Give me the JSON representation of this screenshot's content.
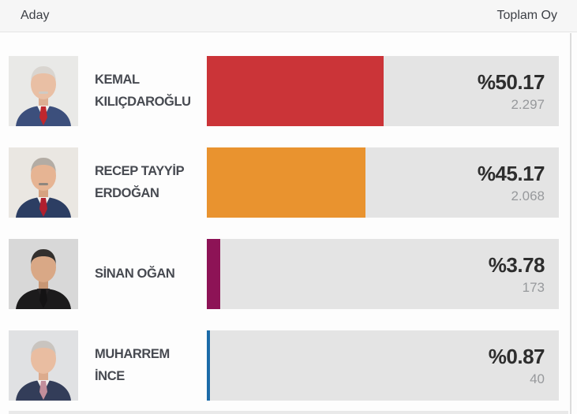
{
  "header": {
    "left": "Aday",
    "right": "Toplam Oy"
  },
  "colors": {
    "track": "#e4e4e4",
    "header_bg": "#f6f6f6",
    "name_text": "#474a51",
    "percent_text": "#2d2d2d",
    "votes_text": "#97999c"
  },
  "candidates": [
    {
      "name": "KEMAL KILIÇDAROĞLU",
      "name_line1": "KEMAL",
      "name_line2": "KILIÇDAROĞLU",
      "percent": 50.17,
      "percent_label": "%50.17",
      "votes": "2.297",
      "color": "#cb3438",
      "photo": {
        "bg": "#e9e9e7",
        "suit": "#3c4f7c",
        "shirt": "#f4f2ef",
        "tie": "#c0272d",
        "skin": "#e9bfa4",
        "neck": "#ddae92",
        "hair": "#d9d5d0",
        "mustache": "#cfcac4"
      }
    },
    {
      "name": "RECEP TAYYİP ERDOĞAN",
      "name_line1": "RECEP TAYYİP",
      "name_line2": "ERDOĞAN",
      "percent": 45.17,
      "percent_label": "%45.17",
      "votes": "2.068",
      "color": "#e9932f",
      "photo": {
        "bg": "#eae7e2",
        "suit": "#2c3e63",
        "shirt": "#f3f1ed",
        "tie": "#b01f2e",
        "skin": "#e6b493",
        "neck": "#d6a280",
        "hair": "#b3aca4",
        "mustache": "#8f867e"
      }
    },
    {
      "name": "SİNAN OĞAN",
      "name_line1": "SİNAN OĞAN",
      "percent": 3.78,
      "percent_label": "%3.78",
      "votes": "173",
      "color": "#8d1356",
      "photo": {
        "bg": "#d8d8d8",
        "suit": "#1c1b1c",
        "shirt": "#262324",
        "tie": "#141314",
        "skin": "#d9a886",
        "neck": "#c79674",
        "hair": "#33302e"
      }
    },
    {
      "name": "MUHARREM İNCE",
      "name_line1": "MUHARREM",
      "name_line2": "İNCE",
      "percent": 0.87,
      "percent_label": "%0.87",
      "votes": "40",
      "color": "#1c6ba8",
      "photo": {
        "bg": "#e0e1e3",
        "suit": "#333d59",
        "shirt": "#f2f0ee",
        "tie": "#c28e9b",
        "skin": "#e9bda1",
        "neck": "#dcab8d",
        "hair": "#c9c4bf"
      }
    }
  ],
  "chart_data": {
    "type": "bar",
    "orientation": "horizontal",
    "categories": [
      "KEMAL KILIÇDAROĞLU",
      "RECEP TAYYİP ERDOĞAN",
      "SİNAN OĞAN",
      "MUHARREM İNCE"
    ],
    "values": [
      50.17,
      45.17,
      3.78,
      0.87
    ],
    "value_labels": [
      "%50.17",
      "%45.17",
      "%3.78",
      "%0.87"
    ],
    "vote_counts": [
      "2.297",
      "2.068",
      "173",
      "40"
    ],
    "bar_colors": [
      "#cb3438",
      "#e9932f",
      "#8d1356",
      "#1c6ba8"
    ],
    "xlim": [
      0,
      100
    ],
    "xlabel": "",
    "ylabel": "",
    "legend": false,
    "column_headers": [
      "Aday",
      "Toplam Oy"
    ]
  }
}
